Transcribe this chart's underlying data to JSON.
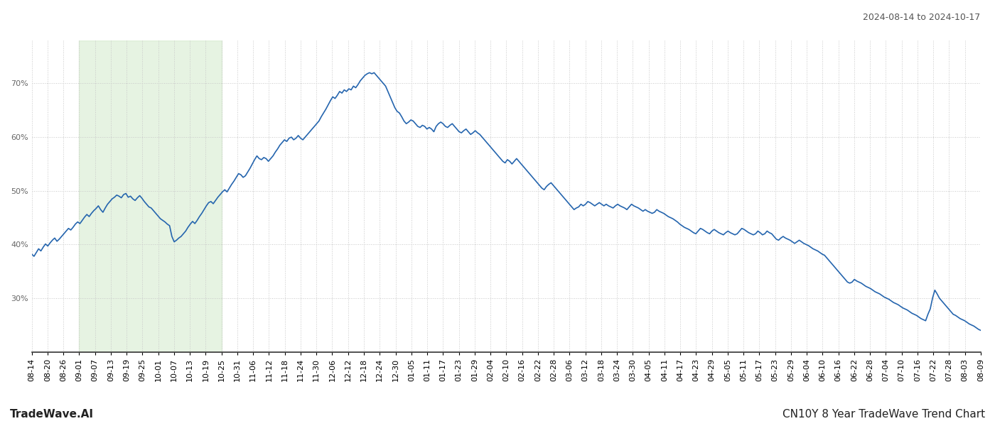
{
  "title_top_right": "2024-08-14 to 2024-10-17",
  "title_bottom": "CN10Y 8 Year TradeWave Trend Chart",
  "watermark_left": "TradeWave.AI",
  "line_color": "#2565ae",
  "line_width": 1.2,
  "background_color": "#ffffff",
  "grid_color": "#c8c8c8",
  "shade_color": "#c8e6c0",
  "shade_alpha": 0.45,
  "ylim": [
    20,
    78
  ],
  "yticks": [
    30,
    40,
    50,
    60,
    70
  ],
  "x_labels": [
    "08-14",
    "08-20",
    "08-26",
    "09-01",
    "09-07",
    "09-13",
    "09-19",
    "09-25",
    "10-01",
    "10-07",
    "10-13",
    "10-19",
    "10-25",
    "10-31",
    "11-06",
    "11-12",
    "11-18",
    "11-24",
    "11-30",
    "12-06",
    "12-12",
    "12-18",
    "12-24",
    "12-30",
    "01-05",
    "01-11",
    "01-17",
    "01-23",
    "01-29",
    "02-04",
    "02-10",
    "02-16",
    "02-22",
    "02-28",
    "03-06",
    "03-12",
    "03-18",
    "03-24",
    "03-30",
    "04-05",
    "04-11",
    "04-17",
    "04-23",
    "04-29",
    "05-05",
    "05-11",
    "05-17",
    "05-23",
    "05-29",
    "06-04",
    "06-10",
    "06-16",
    "06-22",
    "06-28",
    "07-04",
    "07-10",
    "07-16",
    "07-22",
    "07-28",
    "08-03",
    "08-09"
  ],
  "shade_start_label": "09-01",
  "shade_end_label": "10-25",
  "values": [
    38.2,
    37.8,
    38.5,
    39.2,
    38.8,
    39.5,
    40.1,
    39.7,
    40.3,
    40.8,
    41.2,
    40.6,
    41.0,
    41.5,
    42.0,
    42.5,
    43.0,
    42.7,
    43.2,
    43.8,
    44.2,
    43.9,
    44.5,
    45.1,
    45.6,
    45.2,
    45.8,
    46.3,
    46.7,
    47.2,
    46.5,
    46.0,
    46.8,
    47.5,
    48.0,
    48.5,
    48.8,
    49.2,
    49.0,
    48.7,
    49.3,
    49.5,
    48.8,
    49.0,
    48.5,
    48.2,
    48.7,
    49.1,
    48.6,
    48.0,
    47.5,
    47.0,
    46.8,
    46.3,
    45.8,
    45.3,
    44.8,
    44.5,
    44.2,
    43.8,
    43.5,
    41.5,
    40.5,
    40.8,
    41.2,
    41.5,
    42.0,
    42.5,
    43.2,
    43.8,
    44.3,
    43.9,
    44.5,
    45.2,
    45.8,
    46.5,
    47.2,
    47.8,
    48.0,
    47.6,
    48.2,
    48.8,
    49.3,
    49.8,
    50.2,
    49.8,
    50.5,
    51.2,
    51.8,
    52.5,
    53.2,
    53.0,
    52.5,
    52.8,
    53.5,
    54.2,
    55.0,
    55.8,
    56.5,
    56.0,
    55.8,
    56.2,
    56.0,
    55.5,
    56.0,
    56.5,
    57.2,
    57.8,
    58.5,
    59.0,
    59.5,
    59.2,
    59.8,
    60.0,
    59.5,
    59.8,
    60.3,
    59.8,
    59.5,
    60.0,
    60.5,
    61.0,
    61.5,
    62.0,
    62.5,
    63.0,
    63.8,
    64.5,
    65.2,
    66.0,
    66.8,
    67.5,
    67.2,
    67.8,
    68.5,
    68.2,
    68.8,
    68.5,
    69.0,
    68.8,
    69.5,
    69.2,
    69.8,
    70.5,
    71.0,
    71.5,
    71.8,
    72.0,
    71.8,
    72.0,
    71.5,
    71.0,
    70.5,
    70.0,
    69.5,
    68.5,
    67.5,
    66.5,
    65.5,
    64.8,
    64.5,
    63.8,
    63.0,
    62.5,
    62.8,
    63.2,
    63.0,
    62.5,
    62.0,
    61.8,
    62.2,
    62.0,
    61.5,
    61.8,
    61.5,
    61.0,
    62.0,
    62.5,
    62.8,
    62.5,
    62.0,
    61.8,
    62.2,
    62.5,
    62.0,
    61.5,
    61.0,
    60.8,
    61.2,
    61.5,
    61.0,
    60.5,
    60.8,
    61.2,
    60.8,
    60.5,
    60.0,
    59.5,
    59.0,
    58.5,
    58.0,
    57.5,
    57.0,
    56.5,
    56.0,
    55.5,
    55.2,
    55.8,
    55.5,
    55.0,
    55.5,
    56.0,
    55.5,
    55.0,
    54.5,
    54.0,
    53.5,
    53.0,
    52.5,
    52.0,
    51.5,
    51.0,
    50.5,
    50.2,
    50.8,
    51.2,
    51.5,
    51.0,
    50.5,
    50.0,
    49.5,
    49.0,
    48.5,
    48.0,
    47.5,
    47.0,
    46.5,
    46.8,
    47.0,
    47.5,
    47.2,
    47.5,
    48.0,
    47.8,
    47.5,
    47.2,
    47.5,
    47.8,
    47.5,
    47.2,
    47.5,
    47.2,
    47.0,
    46.8,
    47.2,
    47.5,
    47.2,
    47.0,
    46.8,
    46.5,
    47.0,
    47.5,
    47.2,
    47.0,
    46.8,
    46.5,
    46.2,
    46.5,
    46.2,
    46.0,
    45.8,
    46.0,
    46.5,
    46.2,
    46.0,
    45.8,
    45.5,
    45.2,
    45.0,
    44.8,
    44.5,
    44.2,
    43.8,
    43.5,
    43.2,
    43.0,
    42.8,
    42.5,
    42.2,
    42.0,
    42.5,
    43.0,
    42.8,
    42.5,
    42.2,
    42.0,
    42.5,
    42.8,
    42.5,
    42.2,
    42.0,
    41.8,
    42.2,
    42.5,
    42.2,
    42.0,
    41.8,
    42.0,
    42.5,
    43.0,
    42.8,
    42.5,
    42.2,
    42.0,
    41.8,
    42.0,
    42.5,
    42.2,
    41.8,
    42.0,
    42.5,
    42.2,
    42.0,
    41.5,
    41.0,
    40.8,
    41.2,
    41.5,
    41.2,
    41.0,
    40.8,
    40.5,
    40.2,
    40.5,
    40.8,
    40.5,
    40.2,
    40.0,
    39.8,
    39.5,
    39.2,
    39.0,
    38.8,
    38.5,
    38.2,
    38.0,
    37.5,
    37.0,
    36.5,
    36.0,
    35.5,
    35.0,
    34.5,
    34.0,
    33.5,
    33.0,
    32.8,
    33.0,
    33.5,
    33.2,
    33.0,
    32.8,
    32.5,
    32.2,
    32.0,
    31.8,
    31.5,
    31.2,
    31.0,
    30.8,
    30.5,
    30.2,
    30.0,
    29.8,
    29.5,
    29.2,
    29.0,
    28.8,
    28.5,
    28.2,
    28.0,
    27.8,
    27.5,
    27.2,
    27.0,
    26.8,
    26.5,
    26.2,
    26.0,
    25.8,
    27.0,
    28.0,
    30.0,
    31.5,
    30.8,
    30.0,
    29.5,
    29.0,
    28.5,
    28.0,
    27.5,
    27.0,
    26.8,
    26.5,
    26.2,
    26.0,
    25.8,
    25.5,
    25.2,
    25.0,
    24.8,
    24.5,
    24.2,
    24.0
  ],
  "font_size_ticks": 8,
  "font_size_title": 9,
  "font_size_watermark": 11
}
